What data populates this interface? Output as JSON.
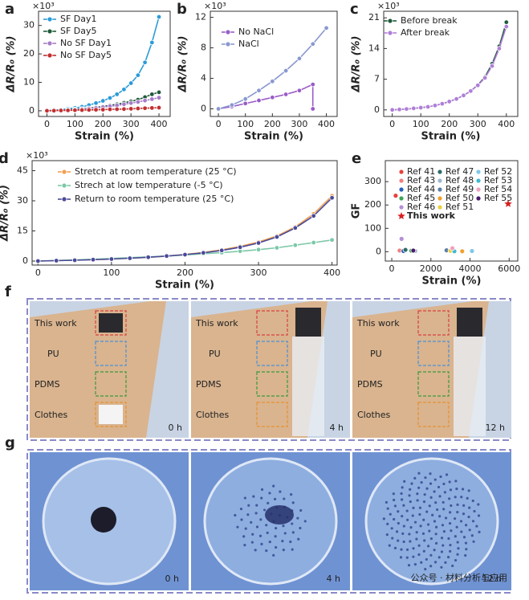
{
  "chart_data": [
    {
      "type": "line",
      "panel": "a",
      "y_multiplier": "×10³",
      "xlabel": "Strain (%)",
      "ylabel": "ΔR/R₀ (%)",
      "x": [
        0,
        25,
        50,
        75,
        100,
        125,
        150,
        175,
        200,
        225,
        250,
        275,
        300,
        325,
        350,
        375,
        400
      ],
      "xlim": [
        -30,
        440
      ],
      "xticks": [
        0,
        100,
        200,
        300,
        400
      ],
      "ylim": [
        -2,
        35
      ],
      "yticks": [
        0,
        10,
        20,
        30
      ],
      "legend": "upper left",
      "series": [
        {
          "name": "SF Day1",
          "color": "#2a9bd8",
          "values": [
            0,
            0.2,
            0.4,
            0.7,
            1,
            1.4,
            2,
            2.7,
            3.5,
            4.5,
            5.8,
            7.5,
            9.7,
            12.5,
            17,
            24,
            33
          ]
        },
        {
          "name": "SF Day5",
          "color": "#1f5a3a",
          "values": [
            0,
            0.1,
            0.2,
            0.3,
            0.5,
            0.7,
            0.9,
            1.2,
            1.5,
            1.9,
            2.3,
            2.8,
            3.3,
            3.9,
            4.8,
            5.8,
            6.5
          ]
        },
        {
          "name": "No SF Day1",
          "color": "#a67cc8",
          "values": [
            0,
            0.1,
            0.2,
            0.3,
            0.4,
            0.6,
            0.8,
            1,
            1.3,
            1.6,
            1.9,
            2.3,
            2.7,
            3.1,
            3.6,
            4.1,
            4.6
          ]
        },
        {
          "name": "No SF Day5",
          "color": "#c23030",
          "values": [
            0,
            0.05,
            0.1,
            0.15,
            0.2,
            0.25,
            0.3,
            0.35,
            0.4,
            0.5,
            0.55,
            0.6,
            0.7,
            0.8,
            0.9,
            1,
            1.1
          ]
        }
      ]
    },
    {
      "type": "line",
      "panel": "b",
      "y_multiplier": "×10³",
      "xlabel": "Strain (%)",
      "ylabel": "ΔR/R₀ (%)",
      "xlim": [
        -30,
        440
      ],
      "xticks": [
        0,
        100,
        200,
        300,
        400
      ],
      "ylim": [
        -1,
        12.8
      ],
      "yticks": [
        0,
        4,
        8,
        12
      ],
      "legend": "upper left",
      "series": [
        {
          "name": "No NaCl",
          "color": "#9a5cc8",
          "x": [
            0,
            50,
            100,
            150,
            200,
            250,
            300,
            350,
            350
          ],
          "values": [
            0,
            0.3,
            0.7,
            1.1,
            1.5,
            1.9,
            2.4,
            3.2,
            0
          ]
        },
        {
          "name": "NaCl",
          "color": "#8a98d0",
          "x": [
            0,
            50,
            100,
            150,
            200,
            250,
            300,
            350,
            400
          ],
          "values": [
            0,
            0.5,
            1.3,
            2.4,
            3.6,
            5,
            6.6,
            8.5,
            10.6
          ]
        }
      ]
    },
    {
      "type": "line",
      "panel": "c",
      "y_multiplier": "×10³",
      "xlabel": "Strain (%)",
      "ylabel": "ΔR/R₀ (%)",
      "x": [
        0,
        25,
        50,
        75,
        100,
        125,
        150,
        175,
        200,
        225,
        250,
        275,
        300,
        325,
        350,
        375,
        400
      ],
      "xlim": [
        -30,
        440
      ],
      "xticks": [
        0,
        100,
        200,
        300,
        400
      ],
      "ylim": [
        -1.5,
        22.5
      ],
      "yticks": [
        0,
        7,
        14,
        21
      ],
      "legend": "upper left",
      "series": [
        {
          "name": "Before break",
          "color": "#1f5a3a",
          "values": [
            0,
            0.1,
            0.2,
            0.35,
            0.5,
            0.7,
            1,
            1.4,
            1.9,
            2.5,
            3.3,
            4.3,
            5.7,
            7.5,
            10.5,
            14.5,
            20
          ]
        },
        {
          "name": "After break",
          "color": "#b07ed8",
          "values": [
            0,
            0.1,
            0.2,
            0.35,
            0.5,
            0.7,
            1,
            1.4,
            1.9,
            2.5,
            3.3,
            4.3,
            5.6,
            7.3,
            10,
            14,
            19
          ]
        }
      ]
    },
    {
      "type": "line",
      "panel": "d",
      "y_multiplier": "×10³",
      "xlabel": "Strain (%)",
      "ylabel": "ΔR/R₀ (%)",
      "x": [
        0,
        25,
        50,
        75,
        100,
        125,
        150,
        175,
        200,
        225,
        250,
        275,
        300,
        325,
        350,
        375,
        400
      ],
      "xlim": [
        -8,
        407
      ],
      "xticks": [
        0,
        100,
        200,
        300,
        400
      ],
      "ylim": [
        -2,
        50
      ],
      "yticks": [
        0,
        15,
        30,
        45
      ],
      "legend": "upper left",
      "series": [
        {
          "name": "Stretch at room temperature (25 °C)",
          "color": "#f0a050",
          "values": [
            0,
            0.2,
            0.4,
            0.7,
            1,
            1.4,
            1.9,
            2.5,
            3.3,
            4.3,
            5.6,
            7.3,
            9.5,
            12.5,
            17,
            23.5,
            32.5
          ]
        },
        {
          "name": "Strech at low temperature (-5 °C)",
          "color": "#7cc8a8",
          "values": [
            0,
            0.3,
            0.6,
            0.9,
            1.3,
            1.7,
            2.1,
            2.5,
            3,
            3.6,
            4.2,
            4.9,
            5.7,
            6.6,
            7.9,
            9.2,
            10.5
          ]
        },
        {
          "name": "Return to room temperature (25 °C)",
          "color": "#4a4a98",
          "values": [
            0,
            0.2,
            0.4,
            0.7,
            1,
            1.4,
            1.9,
            2.5,
            3.2,
            4.1,
            5.3,
            6.9,
            9,
            12,
            16.5,
            22.5,
            31.5
          ]
        }
      ]
    },
    {
      "type": "scatter",
      "panel": "e",
      "xlabel": "Strain (%)",
      "ylabel": "GF",
      "xlim": [
        -330,
        6440
      ],
      "xticks": [
        0,
        2000,
        4000,
        6000
      ],
      "ylim": [
        -40,
        390
      ],
      "yticks": [
        0,
        100,
        200,
        300
      ],
      "legend": "upper right",
      "series": [
        {
          "name": "Ref 41",
          "color": "#e8413c",
          "x": [
            200
          ],
          "values": [
            240
          ]
        },
        {
          "name": "Ref 43",
          "color": "#f08080",
          "x": [
            400
          ],
          "values": [
            5
          ]
        },
        {
          "name": "Ref 44",
          "color": "#1f5fbf",
          "x": [
            600
          ],
          "values": [
            3
          ]
        },
        {
          "name": "Ref 45",
          "color": "#3aa655",
          "x": [
            1000
          ],
          "values": [
            4
          ]
        },
        {
          "name": "Ref 46",
          "color": "#b48fd6",
          "x": [
            500
          ],
          "values": [
            55
          ]
        },
        {
          "name": "Ref 47",
          "color": "#2e6b6b",
          "x": [
            700
          ],
          "values": [
            8
          ]
        },
        {
          "name": "Ref 48",
          "color": "#9fb8d0",
          "x": [
            1200
          ],
          "values": [
            3
          ]
        },
        {
          "name": "Ref 49",
          "color": "#5b7fa6",
          "x": [
            2800
          ],
          "values": [
            6
          ]
        },
        {
          "name": "Ref 50",
          "color": "#f0a030",
          "x": [
            3600
          ],
          "values": [
            2
          ]
        },
        {
          "name": "Ref 51",
          "color": "#e8d040",
          "x": [
            3000
          ],
          "values": [
            4
          ]
        },
        {
          "name": "Ref 52",
          "color": "#7fc8e8",
          "x": [
            4100
          ],
          "values": [
            3
          ]
        },
        {
          "name": "Ref 53",
          "color": "#40b8d0",
          "x": [
            3200
          ],
          "values": [
            2
          ]
        },
        {
          "name": "Ref 54",
          "color": "#f0a0c0",
          "x": [
            3100
          ],
          "values": [
            15
          ]
        },
        {
          "name": "Ref 55",
          "color": "#4a1a6a",
          "x": [
            1100
          ],
          "values": [
            5
          ]
        },
        {
          "name": "This work",
          "color": "#d62020",
          "marker": "star",
          "x": [
            5950
          ],
          "values": [
            205
          ]
        }
      ]
    }
  ],
  "photo_panels": [
    {
      "label": "f",
      "images": [
        {
          "labels": [
            "This work",
            "PU",
            "PDMS",
            "Clothes"
          ],
          "time": "0 h"
        },
        {
          "labels": [
            "This work",
            "PU",
            "PDMS",
            "Clothes"
          ],
          "time": "4 h"
        },
        {
          "labels": [
            "This work",
            "PU",
            "PDMS",
            "Clothes"
          ],
          "time": "12 h"
        }
      ]
    },
    {
      "label": "g",
      "images": [
        {
          "time": "0 h"
        },
        {
          "time": "4 h"
        },
        {
          "time": "12 h"
        }
      ]
    }
  ],
  "watermark": "公众号 · 材料分析与应用"
}
